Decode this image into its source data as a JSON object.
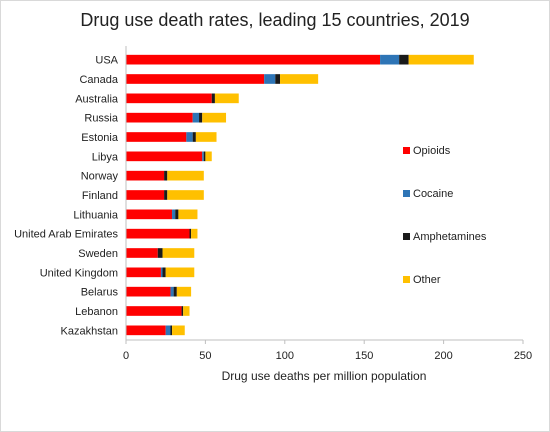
{
  "chart_data": {
    "type": "bar",
    "orientation": "horizontal",
    "stacked": true,
    "title": "Drug use death rates, leading 15 countries, 2019",
    "xlabel": "Drug use deaths per million population",
    "ylabel": "",
    "xlim": [
      0,
      250
    ],
    "xticks": [
      0,
      50,
      100,
      150,
      200,
      250
    ],
    "grid": false,
    "legend_position": "right",
    "categories": [
      "USA",
      "Canada",
      "Australia",
      "Russia",
      "Estonia",
      "Libya",
      "Norway",
      "Finland",
      "Lithuania",
      "United Arab Emirates",
      "Sweden",
      "United Kingdom",
      "Belarus",
      "Lebanon",
      "Kazakhstan"
    ],
    "series": [
      {
        "name": "Opioids",
        "color": "#ff0000",
        "values": [
          160,
          87,
          54,
          42,
          38,
          48,
          24,
          24,
          29,
          40,
          20,
          22,
          28,
          35,
          25
        ]
      },
      {
        "name": "Cocaine",
        "color": "#2e75b6",
        "values": [
          12,
          7,
          0,
          4,
          4,
          1,
          0,
          0,
          2,
          0,
          0,
          1,
          2,
          0,
          3
        ]
      },
      {
        "name": "Amphetamines",
        "color": "#1a1a1a",
        "values": [
          6,
          3,
          2,
          2,
          2,
          1,
          2,
          2,
          2,
          1,
          3,
          2,
          2,
          1,
          1
        ]
      },
      {
        "name": "Other",
        "color": "#ffc000",
        "values": [
          41,
          24,
          15,
          15,
          13,
          4,
          23,
          23,
          12,
          4,
          20,
          18,
          9,
          4,
          8
        ]
      }
    ]
  }
}
